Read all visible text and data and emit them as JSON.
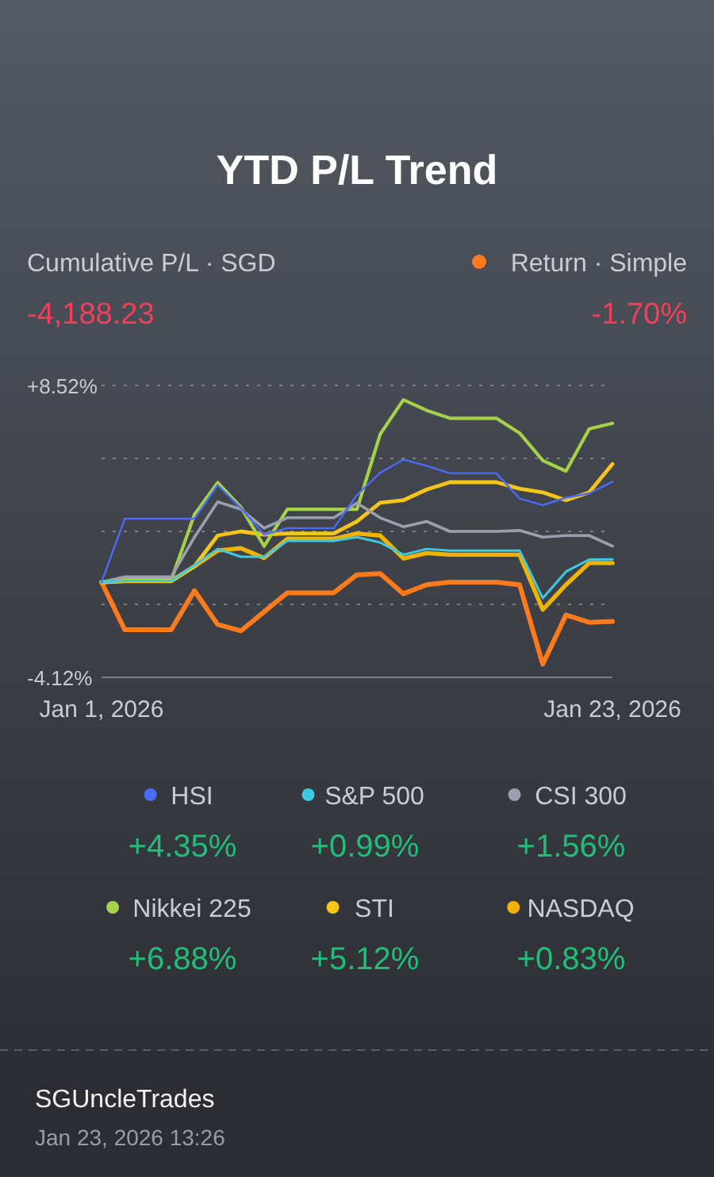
{
  "chart_data": {
    "type": "line",
    "title": "YTD P/L Trend",
    "x": [
      "2026-01-01",
      "2026-01-02",
      "2026-01-03",
      "2026-01-04",
      "2026-01-05",
      "2026-01-06",
      "2026-01-07",
      "2026-01-08",
      "2026-01-09",
      "2026-01-10",
      "2026-01-11",
      "2026-01-12",
      "2026-01-13",
      "2026-01-14",
      "2026-01-15",
      "2026-01-16",
      "2026-01-17",
      "2026-01-18",
      "2026-01-19",
      "2026-01-20",
      "2026-01-21",
      "2026-01-22",
      "2026-01-23"
    ],
    "xlim": [
      "2026-01-01",
      "2026-01-23"
    ],
    "xticks": [
      {
        "value": "2026-01-01",
        "label": "Jan 1, 2026"
      },
      {
        "value": "2026-01-23",
        "label": "Jan 23, 2026"
      }
    ],
    "ylim": [
      -4.12,
      8.52
    ],
    "yticks": [
      {
        "value": -4.12,
        "label": "-4.12%"
      },
      {
        "value": -0.96,
        "label": null
      },
      {
        "value": 2.2,
        "label": null
      },
      {
        "value": 5.36,
        "label": null
      },
      {
        "value": 8.52,
        "label": "+8.52%"
      }
    ],
    "grid": "y",
    "legend": "bottom",
    "marker": "none",
    "line_style": "solid",
    "series": [
      {
        "name": "HSI",
        "color": "#4a6cf7",
        "values": [
          0,
          2.75,
          2.75,
          2.75,
          2.75,
          4.21,
          3.21,
          2.06,
          2.34,
          2.34,
          2.34,
          3.78,
          4.74,
          5.31,
          5.04,
          4.72,
          4.72,
          4.72,
          3.62,
          3.34,
          3.66,
          3.85,
          4.35
        ]
      },
      {
        "name": "S&P 500",
        "color": "#3ec9e0",
        "values": [
          0,
          0.05,
          0.05,
          0.05,
          0.73,
          1.44,
          1.1,
          1.1,
          1.79,
          1.79,
          1.79,
          1.95,
          1.72,
          1.19,
          1.44,
          1.37,
          1.37,
          1.37,
          1.37,
          -0.69,
          0.46,
          0.98,
          0.99
        ]
      },
      {
        "name": "CSI 300",
        "color": "#9aa0ad",
        "values": [
          0,
          0.23,
          0.23,
          0.23,
          1.95,
          3.48,
          3.16,
          2.34,
          2.79,
          2.79,
          2.79,
          3.43,
          2.79,
          2.4,
          2.63,
          2.2,
          2.2,
          2.2,
          2.24,
          1.95,
          2.02,
          2.02,
          1.56
        ]
      },
      {
        "name": "Nikkei 225",
        "color": "#a6d14a",
        "values": [
          0,
          0.18,
          0.18,
          0.09,
          2.93,
          4.31,
          3.25,
          1.56,
          3.16,
          3.16,
          3.16,
          3.16,
          6.41,
          7.9,
          7.44,
          7.1,
          7.1,
          7.1,
          6.46,
          5.27,
          4.81,
          6.64,
          6.88
        ]
      },
      {
        "name": "STI",
        "color": "#f5c518",
        "values": [
          0,
          0.05,
          0.05,
          0.05,
          0.69,
          2.02,
          2.2,
          2.06,
          2.11,
          2.11,
          2.11,
          2.63,
          3.44,
          3.55,
          4.01,
          4.33,
          4.33,
          4.33,
          4.05,
          3.89,
          3.55,
          3.89,
          5.12
        ]
      },
      {
        "name": "NASDAQ",
        "color": "#f0b400",
        "values": [
          0,
          0.05,
          0.05,
          0.05,
          0.69,
          1.37,
          1.47,
          1.05,
          1.88,
          1.88,
          1.88,
          2.11,
          2.02,
          1.03,
          1.26,
          1.19,
          1.19,
          1.19,
          1.19,
          -1.19,
          -0.11,
          0.83,
          0.83
        ]
      },
      {
        "name": "Return · Simple",
        "color": "#ff7a1a",
        "values": [
          0,
          -2.06,
          -2.06,
          -2.06,
          -0.37,
          -1.83,
          -2.11,
          -1.28,
          -0.46,
          -0.46,
          -0.46,
          0.32,
          0.37,
          -0.5,
          -0.11,
          0,
          0,
          0,
          -0.11,
          -3.55,
          -1.42,
          -1.74,
          -1.7
        ]
      }
    ],
    "annotations": [
      "Cumulative P/L · SGD",
      "-4,188.23",
      "-1.70%",
      "+4.35%",
      "+0.99%",
      "+1.56%",
      "+6.88%",
      "+5.12%",
      "+0.83%",
      "SGUncleTrades",
      "Jan 23, 2026 13:26"
    ]
  }
}
